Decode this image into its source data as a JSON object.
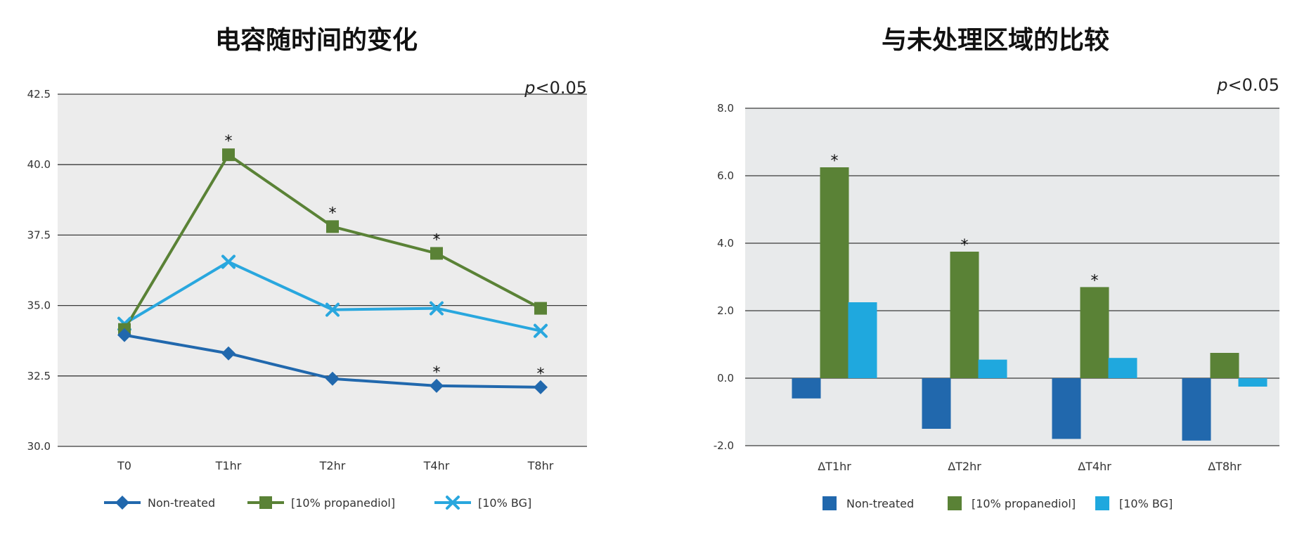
{
  "chart_data": [
    {
      "type": "line",
      "title": "电容随时间的变化",
      "annotation": "p<0.05",
      "categories": [
        "T0",
        "T1hr",
        "T2hr",
        "T4hr",
        "T8hr"
      ],
      "ylim": [
        30.0,
        42.5
      ],
      "yticks": [
        "30.0",
        "32.5",
        "35.0",
        "37.5",
        "40.0",
        "42.5"
      ],
      "grid": true,
      "legend_position": "bottom",
      "series": [
        {
          "name": "Non-treated",
          "color": "#2168ad",
          "marker": "diamond",
          "values": [
            33.95,
            33.3,
            32.4,
            32.15,
            32.1
          ],
          "significant": [
            false,
            false,
            false,
            true,
            true
          ]
        },
        {
          "name": "[10% propanediol]",
          "color": "#5a8236",
          "marker": "square",
          "values": [
            34.15,
            40.35,
            37.8,
            36.85,
            34.9
          ],
          "significant": [
            false,
            true,
            true,
            true,
            false
          ]
        },
        {
          "name": "[10% BG]",
          "color": "#29a7de",
          "marker": "x",
          "values": [
            34.35,
            36.55,
            34.85,
            34.9,
            34.1
          ],
          "significant": [
            false,
            false,
            false,
            false,
            false
          ]
        }
      ]
    },
    {
      "type": "bar",
      "title": "与未处理区域的比较",
      "annotation": "p<0.05",
      "categories": [
        "ΔT1hr",
        "ΔT2hr",
        "ΔT4hr",
        "ΔT8hr"
      ],
      "ylim": [
        -2.0,
        8.0
      ],
      "yticks": [
        "-2.0",
        "0.0",
        "2.0",
        "4.0",
        "6.0",
        "8.0"
      ],
      "grid": true,
      "legend_position": "bottom",
      "series": [
        {
          "name": "Non-treated",
          "color": "#2168ad",
          "values": [
            -0.6,
            -1.5,
            -1.8,
            -1.85
          ],
          "significant": [
            false,
            false,
            false,
            false
          ]
        },
        {
          "name": "[10% propanediol]",
          "color": "#5a8236",
          "values": [
            6.25,
            3.75,
            2.7,
            0.75
          ],
          "significant": [
            true,
            true,
            true,
            false
          ]
        },
        {
          "name": "[10% BG]",
          "color": "#1fa8de",
          "values": [
            2.25,
            0.55,
            0.6,
            -0.25
          ],
          "significant": [
            false,
            false,
            false,
            false
          ]
        }
      ]
    }
  ]
}
